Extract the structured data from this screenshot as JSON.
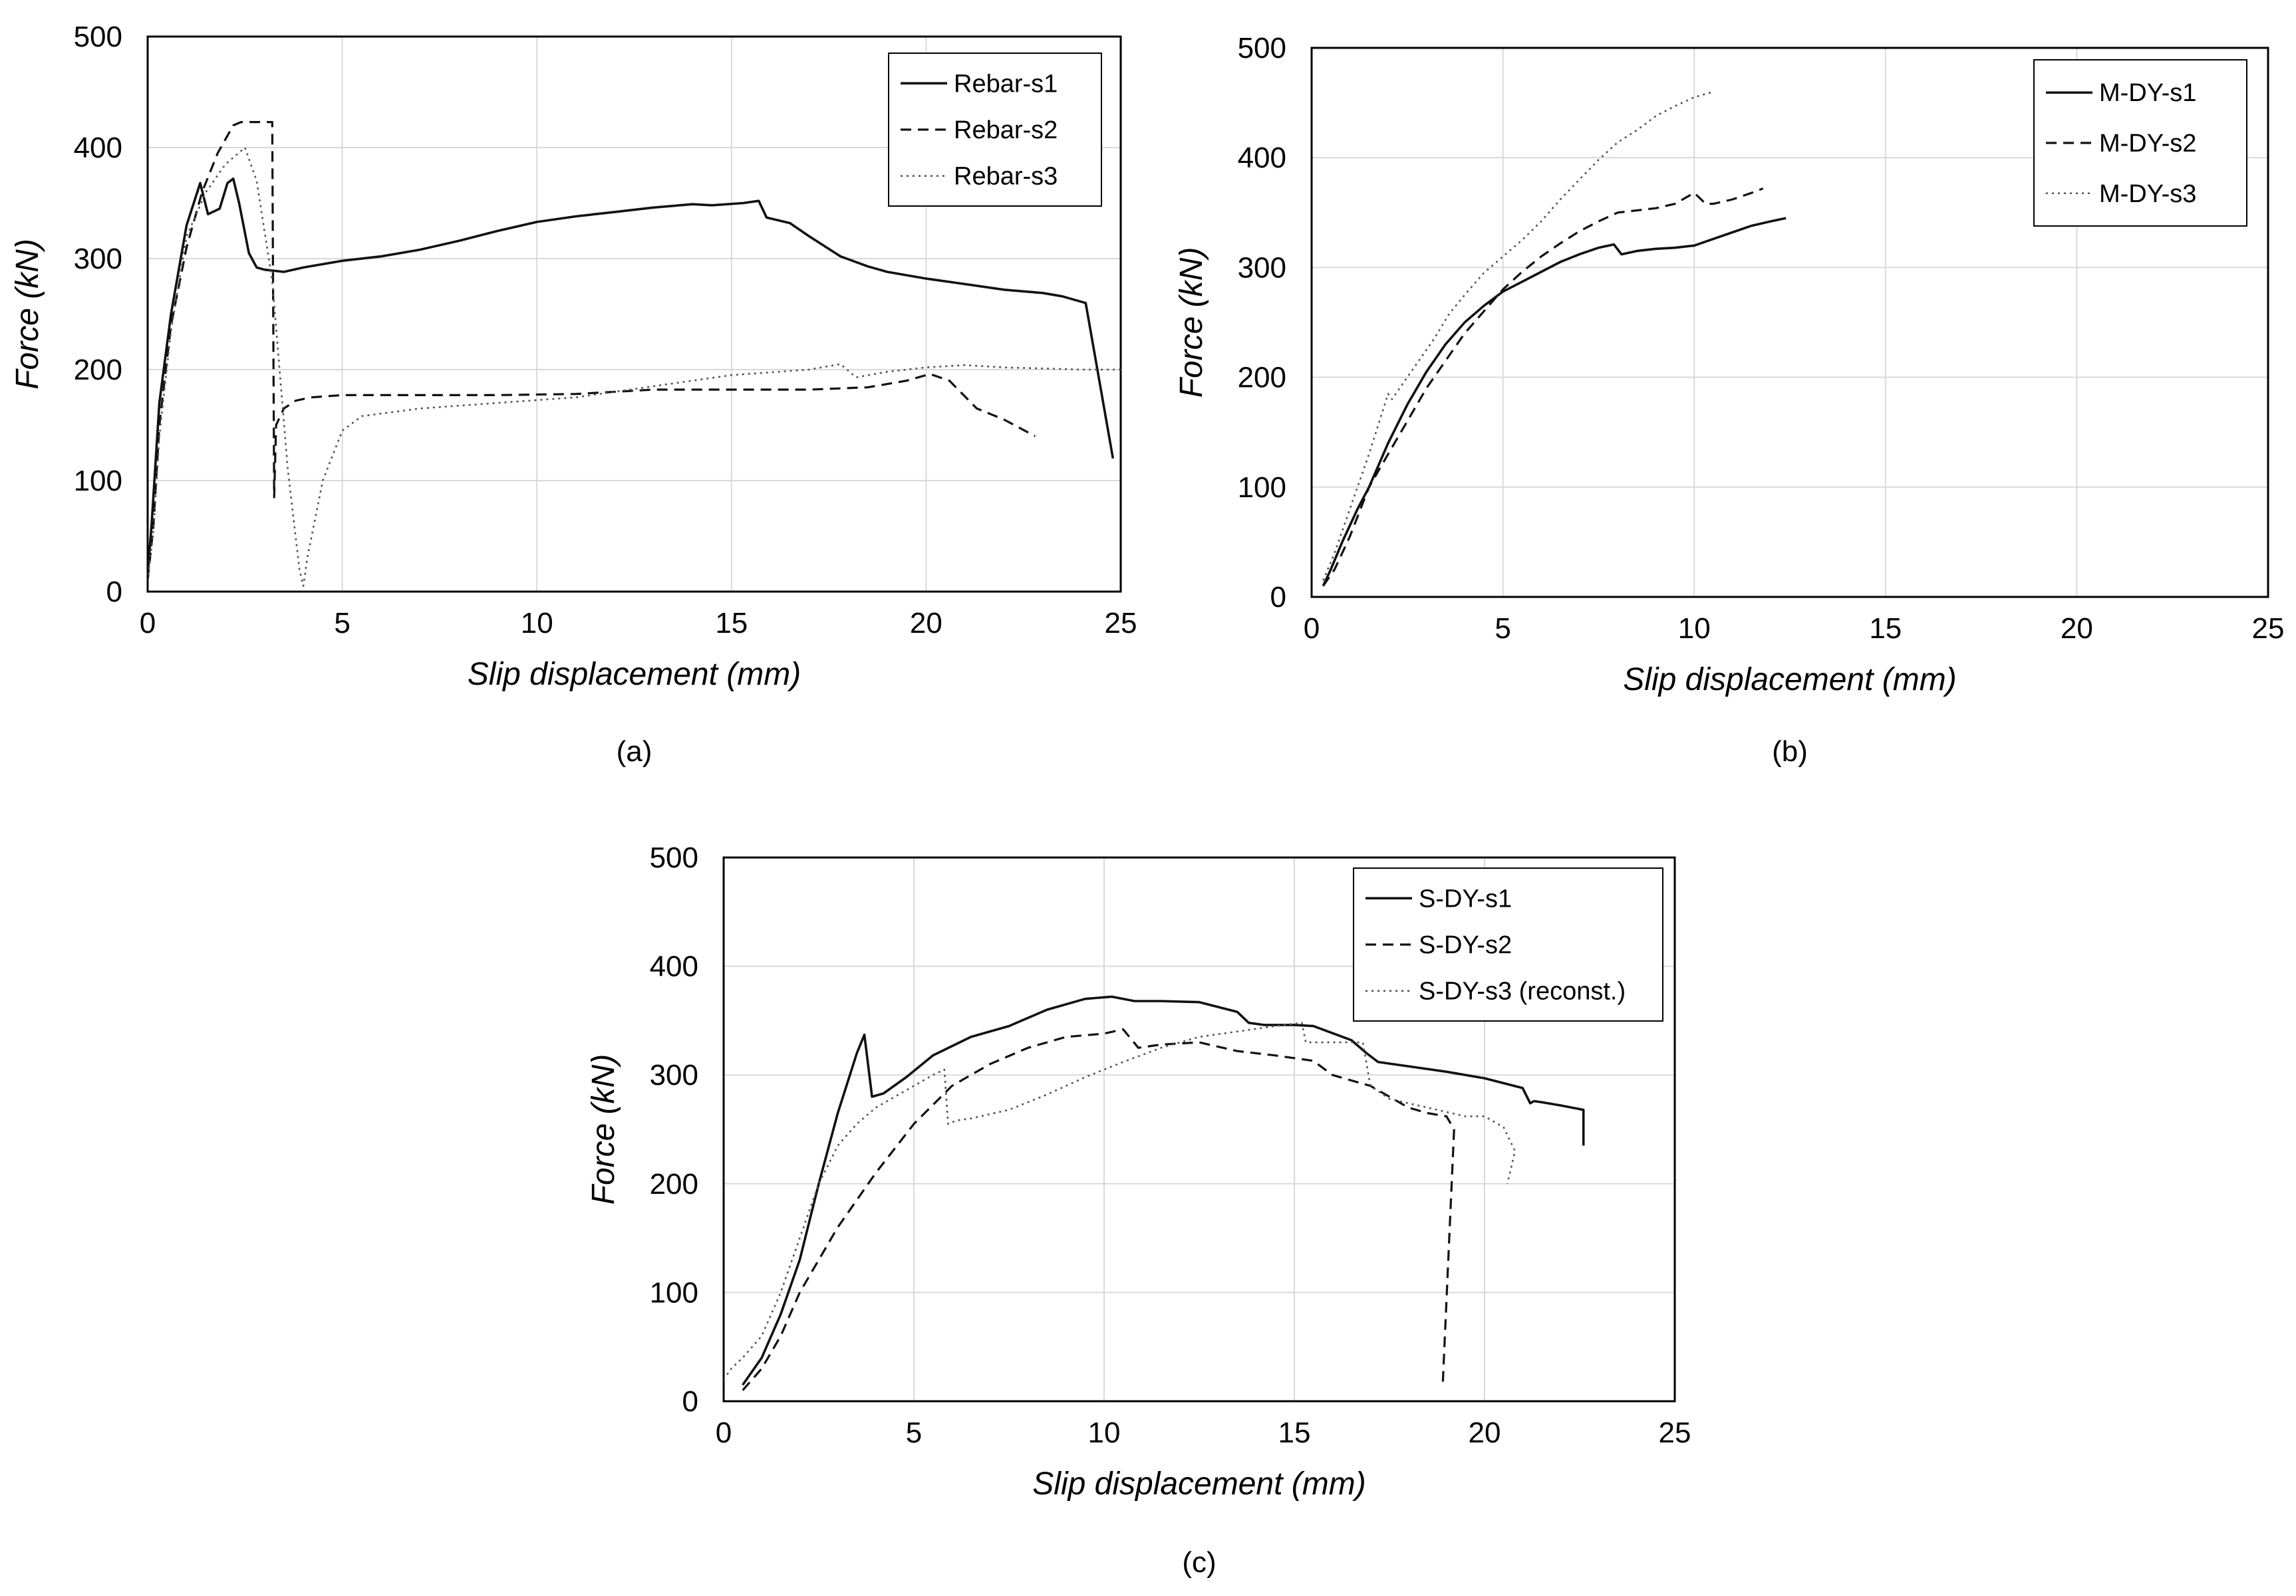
{
  "chart_data": [
    {
      "type": "line",
      "caption": "(a)",
      "xlabel": "Slip displacement (mm)",
      "ylabel": "Force (kN)",
      "xlim": [
        0,
        25
      ],
      "ylim": [
        0,
        500
      ],
      "xticks": [
        0,
        5,
        10,
        15,
        20,
        25
      ],
      "yticks": [
        0,
        100,
        200,
        300,
        400,
        500
      ],
      "grid": true,
      "legend": "top-right",
      "series": [
        {
          "name": "Rebar-s1",
          "style": "solid",
          "x": [
            0,
            0.1,
            0.3,
            0.6,
            1.0,
            1.35,
            1.55,
            1.85,
            2.05,
            2.2,
            2.35,
            2.6,
            2.8,
            3.0,
            3.5,
            4,
            5,
            6,
            7,
            8,
            9,
            10,
            11,
            12,
            13,
            14,
            14.5,
            15.3,
            15.7,
            15.9,
            16.5,
            17.0,
            17.8,
            18.5,
            19,
            20,
            21,
            22,
            23,
            23.5,
            24.1,
            24.4,
            24.8
          ],
          "y": [
            15,
            60,
            170,
            250,
            330,
            368,
            340,
            345,
            368,
            372,
            350,
            305,
            292,
            290,
            288,
            292,
            298,
            302,
            308,
            316,
            325,
            333,
            338,
            342,
            346,
            349,
            348,
            350,
            352,
            337,
            332,
            320,
            302,
            293,
            288,
            282,
            277,
            272,
            269,
            266,
            260,
            200,
            120
          ]
        },
        {
          "name": "Rebar-s2",
          "style": "dashed",
          "x": [
            0,
            0.15,
            0.3,
            0.6,
            1.0,
            1.4,
            1.8,
            2.2,
            2.4,
            3.2,
            3.25,
            3.3,
            3.5,
            3.8,
            4.2,
            5,
            7,
            9,
            11,
            13,
            15,
            17,
            18.5,
            19.5,
            20.1,
            20.6,
            21.3,
            22.0,
            22.8
          ],
          "y": [
            10,
            60,
            150,
            240,
            310,
            360,
            395,
            420,
            423,
            423,
            85,
            150,
            165,
            172,
            175,
            177,
            177,
            177,
            178,
            182,
            182,
            182,
            184,
            190,
            196,
            190,
            165,
            155,
            140
          ]
        },
        {
          "name": "Rebar-s3",
          "style": "dotted",
          "x": [
            0,
            0.15,
            0.3,
            0.6,
            1.0,
            1.5,
            2.0,
            2.5,
            2.8,
            3.2,
            3.6,
            3.9,
            4.0,
            4.1,
            4.5,
            5.0,
            5.5,
            7,
            9,
            11,
            13,
            15,
            17,
            17.8,
            18.2,
            19,
            20,
            21,
            22,
            23,
            24,
            25
          ],
          "y": [
            10,
            55,
            140,
            235,
            320,
            360,
            385,
            400,
            370,
            280,
            110,
            20,
            5,
            30,
            100,
            145,
            158,
            165,
            170,
            175,
            185,
            195,
            200,
            205,
            193,
            198,
            202,
            204,
            202,
            201,
            200,
            200
          ]
        }
      ]
    },
    {
      "type": "line",
      "caption": "(b)",
      "xlabel": "Slip displacement (mm)",
      "ylabel": "Force (kN)",
      "xlim": [
        0,
        25
      ],
      "ylim": [
        0,
        500
      ],
      "xticks": [
        0,
        5,
        10,
        15,
        20,
        25
      ],
      "yticks": [
        0,
        100,
        200,
        300,
        400,
        500
      ],
      "grid": true,
      "legend": "top-right",
      "series": [
        {
          "name": "M-DY-s1",
          "style": "solid",
          "x": [
            0.3,
            0.5,
            0.8,
            1.2,
            1.5,
            2.0,
            2.5,
            3.0,
            3.5,
            4.0,
            4.5,
            5.0,
            5.5,
            6.0,
            6.5,
            7.0,
            7.5,
            7.9,
            8.1,
            8.5,
            9.0,
            9.5,
            10,
            10.5,
            11,
            11.5,
            12,
            12.4
          ],
          "y": [
            10,
            25,
            50,
            80,
            100,
            140,
            175,
            205,
            230,
            250,
            265,
            278,
            287,
            296,
            305,
            312,
            318,
            321,
            312,
            315,
            317,
            318,
            320,
            326,
            332,
            338,
            342,
            345
          ]
        },
        {
          "name": "M-DY-s2",
          "style": "dashed",
          "x": [
            0.3,
            0.6,
            1.0,
            1.5,
            2.0,
            2.5,
            3.0,
            3.5,
            4.0,
            4.5,
            5.0,
            5.5,
            6.0,
            6.5,
            7.0,
            7.5,
            8.0,
            9.0,
            9.5,
            10.0,
            10.3,
            10.5,
            11.0,
            11.5,
            11.8
          ],
          "y": [
            10,
            25,
            55,
            100,
            130,
            160,
            190,
            215,
            240,
            260,
            280,
            296,
            310,
            322,
            333,
            342,
            350,
            354,
            358,
            368,
            358,
            358,
            362,
            368,
            372
          ]
        },
        {
          "name": "M-DY-s3",
          "style": "dotted",
          "x": [
            0.3,
            0.6,
            1.0,
            1.5,
            2.0,
            2.1,
            2.4,
            2.8,
            3.2,
            3.6,
            4.0,
            4.5,
            5.0,
            5.5,
            6.0,
            6.5,
            7.0,
            7.5,
            8.0,
            8.5,
            9.0,
            9.5,
            10.0,
            10.5
          ],
          "y": [
            15,
            40,
            80,
            130,
            185,
            180,
            195,
            215,
            235,
            258,
            275,
            295,
            310,
            325,
            342,
            362,
            380,
            398,
            414,
            425,
            438,
            447,
            455,
            460
          ]
        }
      ]
    },
    {
      "type": "line",
      "caption": "(c)",
      "xlabel": "Slip displacement (mm)",
      "ylabel": "Force (kN)",
      "xlim": [
        0,
        25
      ],
      "ylim": [
        0,
        500
      ],
      "xticks": [
        0,
        5,
        10,
        15,
        20,
        25
      ],
      "yticks": [
        0,
        100,
        200,
        300,
        400,
        500
      ],
      "grid": true,
      "legend": "top-right",
      "series": [
        {
          "name": "S-DY-s1",
          "style": "solid",
          "x": [
            0.5,
            1.0,
            1.5,
            2.0,
            2.5,
            3.0,
            3.5,
            3.7,
            3.9,
            4.2,
            4.8,
            5.5,
            6.5,
            7.5,
            8.5,
            9.5,
            10.2,
            10.8,
            11.5,
            12.5,
            13.5,
            13.8,
            14.2,
            15,
            15.5,
            16.5,
            16.9,
            17.2,
            18,
            19,
            20,
            21,
            21.2,
            21.3,
            21.5,
            22,
            22.6,
            22.6
          ],
          "y": [
            15,
            40,
            80,
            130,
            200,
            265,
            320,
            337,
            280,
            283,
            298,
            318,
            335,
            345,
            360,
            370,
            372,
            368,
            368,
            367,
            358,
            348,
            346,
            346,
            345,
            332,
            320,
            312,
            308,
            303,
            297,
            288,
            274,
            276,
            275,
            272,
            268,
            235
          ]
        },
        {
          "name": "S-DY-s2",
          "style": "dashed",
          "x": [
            0.5,
            1.0,
            1.5,
            2.0,
            2.5,
            3.0,
            4.0,
            5.0,
            6.0,
            7.0,
            8.0,
            9.0,
            10.0,
            10.5,
            10.9,
            11.5,
            12.5,
            13.5,
            14.5,
            15.5,
            16.0,
            16.5,
            17.0,
            17.5,
            18.0,
            18.5,
            19.0,
            19.2,
            18.9
          ],
          "y": [
            10,
            30,
            60,
            100,
            130,
            160,
            210,
            255,
            290,
            310,
            325,
            335,
            338,
            342,
            325,
            328,
            330,
            322,
            318,
            313,
            300,
            295,
            290,
            280,
            270,
            265,
            262,
            250,
            15
          ]
        },
        {
          "name": "S-DY-s3 (reconst.)",
          "style": "dotted",
          "x": [
            0,
            0.2,
            0.5,
            1.0,
            1.5,
            2.0,
            2.5,
            3.0,
            3.5,
            4.0,
            4.5,
            5.0,
            5.5,
            5.8,
            5.9,
            6.1,
            6.5,
            7.5,
            8.5,
            9.5,
            10.5,
            11.5,
            12.5,
            13.5,
            14.5,
            15.2,
            15.3,
            16,
            16.8,
            17.0,
            17.5,
            18.5,
            19.5,
            20.0,
            20.5,
            20.8,
            20.6
          ],
          "y": [
            20,
            30,
            40,
            60,
            100,
            150,
            200,
            235,
            255,
            270,
            280,
            290,
            300,
            305,
            255,
            258,
            260,
            268,
            282,
            298,
            312,
            325,
            335,
            340,
            345,
            348,
            330,
            330,
            330,
            290,
            278,
            270,
            262,
            262,
            252,
            230,
            200
          ]
        }
      ]
    }
  ]
}
